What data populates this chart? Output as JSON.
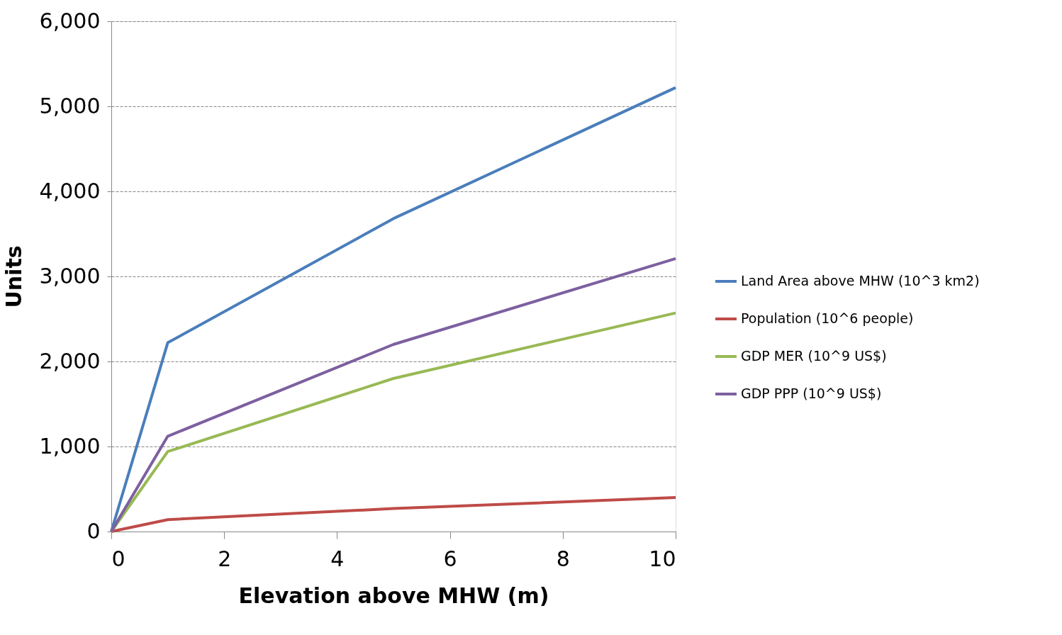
{
  "chart_data": {
    "type": "line",
    "xlabel": "Elevation above MHW (m)",
    "ylabel": "Units",
    "xlim": [
      0,
      10
    ],
    "xticks": [
      0,
      2,
      4,
      6,
      8,
      10
    ],
    "ylim": [
      0,
      6000
    ],
    "yticks": [
      0,
      {
        "value": 1000,
        "label": "1,000"
      },
      {
        "value": 2000,
        "label": "2,000"
      },
      {
        "value": 3000,
        "label": "3,000"
      },
      {
        "value": 4000,
        "label": "4,000"
      },
      {
        "value": 5000,
        "label": "5,000"
      },
      {
        "value": 6000,
        "label": "6,000"
      }
    ],
    "grid": "y",
    "legend": "right",
    "line_style": "solid",
    "series": [
      {
        "name": "Land Area above MHW (10^3 km2)",
        "color": "#4a7ebb",
        "x": [
          0,
          1,
          5,
          10
        ],
        "values": [
          0,
          2220,
          3680,
          5220
        ]
      },
      {
        "name": "Population (10^6 people)",
        "color": "#be4b48",
        "x": [
          0,
          1,
          5,
          10
        ],
        "values": [
          0,
          140,
          270,
          400
        ]
      },
      {
        "name": "GDP MER (10^9 US$)",
        "color": "#98b954",
        "x": [
          0,
          1,
          5,
          10
        ],
        "values": [
          0,
          940,
          1800,
          2570
        ]
      },
      {
        "name": "GDP PPP (10^9 US$)",
        "color": "#7d60a0",
        "x": [
          0,
          1,
          5,
          10
        ],
        "values": [
          0,
          1120,
          2200,
          3210
        ]
      }
    ]
  }
}
